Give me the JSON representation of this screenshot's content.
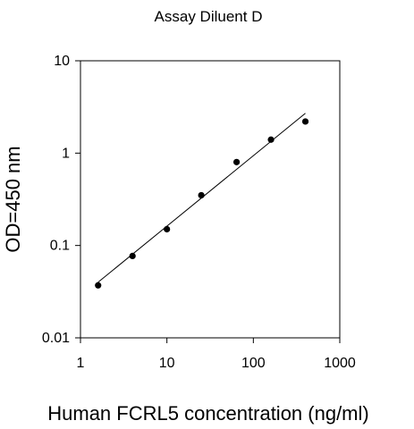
{
  "chart_data": {
    "type": "scatter",
    "title": "Assay Diluent D",
    "xlabel": "Human FCRL5 concentration (ng/ml)",
    "ylabel": "OD=450 nm",
    "x_scale": "log",
    "y_scale": "log",
    "xlim": [
      1,
      1000
    ],
    "ylim": [
      0.01,
      10
    ],
    "x_ticks": [
      1,
      10,
      100,
      1000
    ],
    "x_tick_labels": [
      "1",
      "10",
      "100",
      "1000"
    ],
    "y_ticks": [
      0.01,
      0.1,
      1,
      10
    ],
    "y_tick_labels": [
      "0.01",
      "0.1",
      "1",
      "10"
    ],
    "grid": false,
    "legend": "none",
    "series": [
      {
        "x": [
          1.6,
          4,
          10,
          25,
          64,
          160,
          400
        ],
        "y": [
          0.037,
          0.077,
          0.15,
          0.35,
          0.8,
          1.4,
          2.2
        ]
      }
    ],
    "fit_line": {
      "x": [
        1.6,
        400
      ],
      "y": [
        0.04,
        2.7
      ]
    },
    "colors": {
      "marker": "#000000",
      "line": "#000000"
    }
  }
}
